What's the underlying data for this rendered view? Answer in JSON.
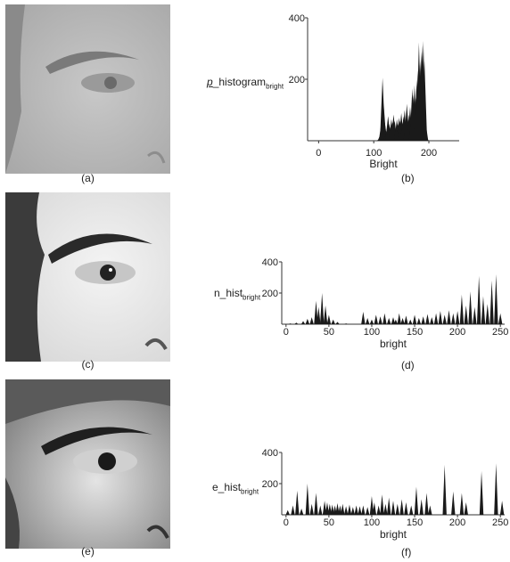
{
  "captions": {
    "a": "(a)",
    "b": "(b)",
    "c": "(c)",
    "d": "(d)",
    "e": "(e)",
    "f": "(f)"
  },
  "chart_data": [
    {
      "type": "bar",
      "ylabel_prefix": "p",
      "ylabel_main": "_histogram",
      "ylabel_sub": "bright",
      "xlabel": "Bright",
      "xticks": [
        0,
        100,
        200
      ],
      "yticks": [
        200,
        400
      ],
      "xlim": [
        -20,
        255
      ],
      "ylim": [
        0,
        400
      ],
      "x": [
        110,
        112,
        114,
        116,
        118,
        120,
        122,
        124,
        126,
        128,
        130,
        132,
        134,
        136,
        138,
        140,
        142,
        144,
        146,
        148,
        150,
        152,
        154,
        156,
        158,
        160,
        162,
        164,
        166,
        168,
        170,
        172,
        174,
        176,
        178,
        180,
        182,
        184,
        186,
        188,
        190,
        192,
        194,
        196
      ],
      "values": [
        5,
        20,
        60,
        205,
        120,
        60,
        25,
        40,
        80,
        55,
        45,
        70,
        60,
        85,
        65,
        40,
        70,
        55,
        75,
        65,
        90,
        60,
        80,
        100,
        40,
        120,
        70,
        85,
        110,
        70,
        170,
        150,
        180,
        140,
        200,
        230,
        320,
        260,
        290,
        310,
        325,
        260,
        60,
        5
      ]
    },
    {
      "type": "bar",
      "ylabel_main": "n_hist",
      "ylabel_sub": "bright",
      "xlabel": "bright",
      "xticks": [
        0,
        50,
        100,
        150,
        200,
        250
      ],
      "yticks": [
        200,
        400
      ],
      "xlim": [
        -5,
        255
      ],
      "ylim": [
        0,
        400
      ],
      "x": [
        5,
        12,
        20,
        25,
        30,
        35,
        38,
        42,
        46,
        50,
        55,
        60,
        70,
        90,
        95,
        100,
        105,
        110,
        115,
        120,
        125,
        128,
        132,
        136,
        140,
        145,
        150,
        155,
        160,
        165,
        170,
        175,
        180,
        185,
        190,
        195,
        200,
        205,
        210,
        215,
        220,
        225,
        230,
        235,
        240,
        245,
        250
      ],
      "values": [
        5,
        10,
        20,
        35,
        45,
        150,
        110,
        200,
        120,
        60,
        30,
        15,
        5,
        80,
        40,
        30,
        60,
        50,
        70,
        40,
        45,
        30,
        70,
        40,
        55,
        30,
        60,
        40,
        50,
        65,
        45,
        70,
        85,
        60,
        90,
        70,
        85,
        190,
        120,
        210,
        110,
        310,
        180,
        130,
        280,
        320,
        70
      ]
    },
    {
      "type": "bar",
      "ylabel_main": "e_hist",
      "ylabel_sub": "bright",
      "xlabel": "bright",
      "xticks": [
        0,
        50,
        100,
        150,
        200,
        250
      ],
      "yticks": [
        200,
        400
      ],
      "xlim": [
        -5,
        255
      ],
      "ylim": [
        0,
        400
      ],
      "x": [
        2,
        8,
        13,
        18,
        25,
        30,
        35,
        40,
        45,
        48,
        51,
        54,
        57,
        60,
        63,
        66,
        70,
        74,
        78,
        82,
        86,
        90,
        95,
        100,
        103,
        108,
        112,
        116,
        120,
        125,
        130,
        135,
        140,
        146,
        152,
        158,
        164,
        168,
        185,
        195,
        205,
        210,
        228,
        245,
        252
      ],
      "values": [
        30,
        60,
        155,
        40,
        200,
        70,
        140,
        60,
        90,
        80,
        70,
        65,
        60,
        75,
        60,
        70,
        55,
        65,
        50,
        60,
        55,
        60,
        50,
        120,
        80,
        60,
        130,
        70,
        110,
        90,
        70,
        100,
        80,
        60,
        180,
        100,
        140,
        60,
        320,
        150,
        140,
        80,
        280,
        330,
        90
      ]
    }
  ]
}
